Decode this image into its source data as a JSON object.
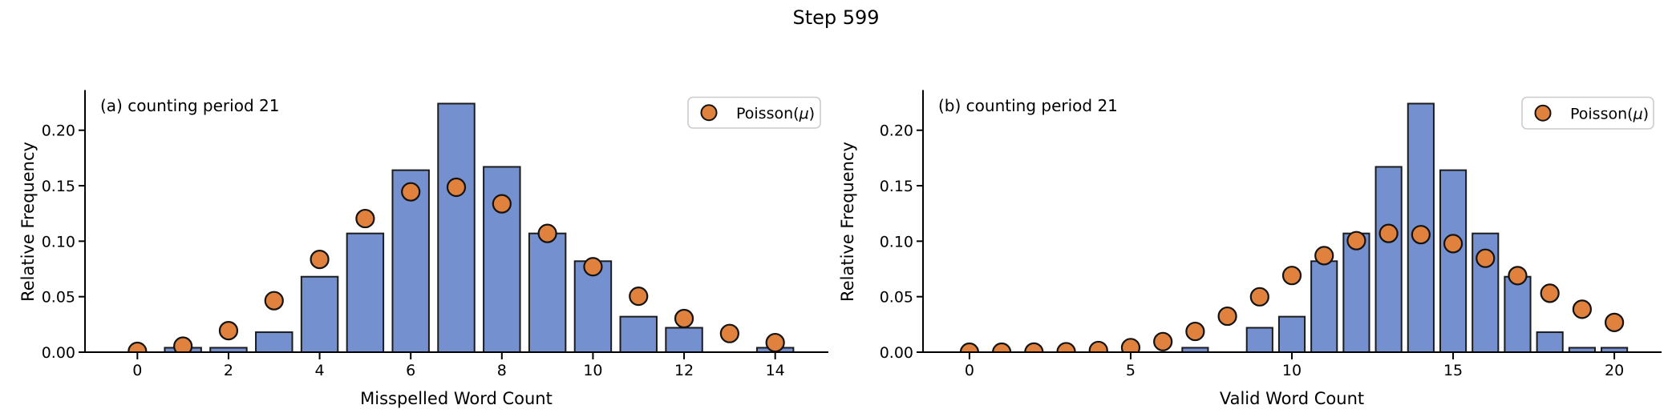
{
  "figure": {
    "title": "Step 599",
    "background": "#ffffff"
  },
  "colors": {
    "bar_fill": "#7590ce",
    "bar_edge": "#1c1c1c",
    "dot_fill": "#e0813e",
    "dot_edge": "#131313",
    "axis": "#000000",
    "tick_text": "#000000",
    "legend_border": "#cccccc",
    "legend_bg": "#ffffff"
  },
  "chart_data": [
    {
      "type": "bar",
      "panel_label": "(a) counting period 21",
      "xlabel": "Misspelled Word Count",
      "ylabel": "Relative Frequency",
      "legend": {
        "label": "Poisson(μ)",
        "position": "upper right"
      },
      "grid": false,
      "x": [
        0,
        1,
        2,
        3,
        4,
        5,
        6,
        7,
        8,
        9,
        10,
        11,
        12,
        13,
        14
      ],
      "series": [
        {
          "name": "histogram",
          "type": "bar",
          "values": [
            0,
            0.004,
            0.004,
            0.018,
            0.068,
            0.107,
            0.164,
            0.224,
            0.167,
            0.107,
            0.082,
            0.032,
            0.022,
            0,
            0.004
          ]
        },
        {
          "name": "Poisson(μ)",
          "type": "scatter",
          "values": [
            0.0007,
            0.0054,
            0.0194,
            0.0464,
            0.0836,
            0.1204,
            0.1445,
            0.1486,
            0.1337,
            0.107,
            0.077,
            0.0504,
            0.0303,
            0.0168,
            0.0086
          ]
        }
      ],
      "xticks": [
        0,
        2,
        4,
        6,
        8,
        10,
        12,
        14
      ],
      "yticks": [
        0.0,
        0.05,
        0.1,
        0.15,
        0.2
      ],
      "xlim": [
        -1.15,
        15.15
      ],
      "ylim": [
        0,
        0.2355
      ]
    },
    {
      "type": "bar",
      "panel_label": "(b) counting period 21",
      "xlabel": "Valid Word Count",
      "ylabel": "Relative Frequency",
      "legend": {
        "label": "Poisson(μ)",
        "position": "upper right"
      },
      "grid": false,
      "x": [
        0,
        1,
        2,
        3,
        4,
        5,
        6,
        7,
        8,
        9,
        10,
        11,
        12,
        13,
        14,
        15,
        16,
        17,
        18,
        19,
        20
      ],
      "series": [
        {
          "name": "histogram",
          "type": "bar",
          "values": [
            0,
            0,
            0,
            0,
            0,
            0,
            0,
            0.004,
            0,
            0.022,
            0.032,
            0.082,
            0.107,
            0.167,
            0.224,
            0.164,
            0.107,
            0.068,
            0.018,
            0.004,
            0.004
          ]
        },
        {
          "name": "Poisson(μ)",
          "type": "scatter",
          "values": [
            0.0,
            0.0,
            0.0001,
            0.0004,
            0.0015,
            0.0041,
            0.0095,
            0.0187,
            0.0324,
            0.0499,
            0.0691,
            0.087,
            0.1005,
            0.107,
            0.1059,
            0.0978,
            0.0846,
            0.069,
            0.0531,
            0.0387,
            0.0268
          ]
        }
      ],
      "xticks": [
        0,
        5,
        10,
        15,
        20
      ],
      "yticks": [
        0.0,
        0.05,
        0.1,
        0.15,
        0.2
      ],
      "xlim": [
        -1.44,
        21.44
      ],
      "ylim": [
        0,
        0.2355
      ]
    }
  ]
}
